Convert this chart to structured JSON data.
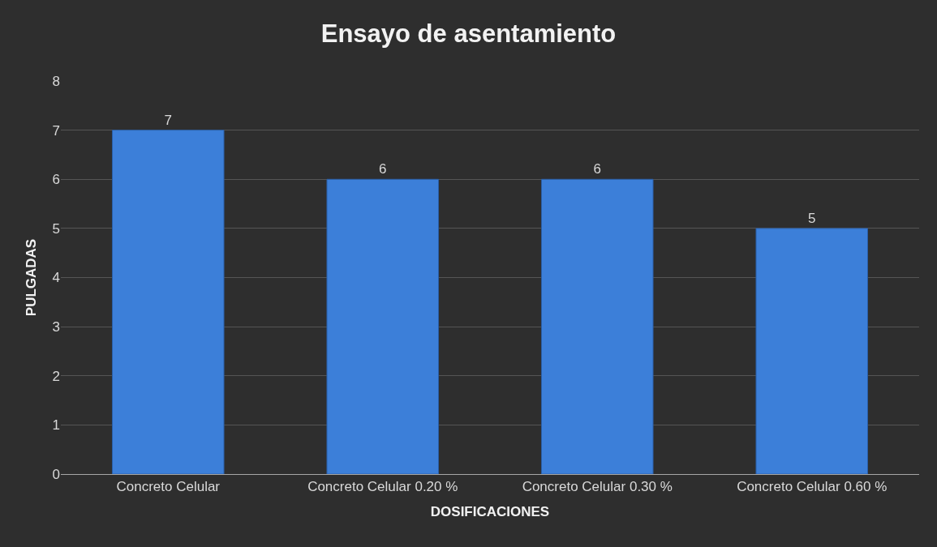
{
  "chart_data": {
    "type": "bar",
    "title": "Ensayo de asentamiento",
    "xlabel": "DOSIFICACIONES",
    "ylabel": "PULGADAS",
    "categories": [
      "Concreto Celular",
      "Concreto Celular 0.20 %",
      "Concreto Celular 0.30 %",
      "Concreto Celular 0.60 %"
    ],
    "values": [
      7,
      6,
      6,
      5
    ],
    "color": "#3c7fd9",
    "ylim": [
      0,
      8
    ],
    "yticks": [
      0,
      1,
      2,
      3,
      4,
      5,
      6,
      7,
      8
    ],
    "grid": "y",
    "data_labels": true,
    "legend": false
  }
}
